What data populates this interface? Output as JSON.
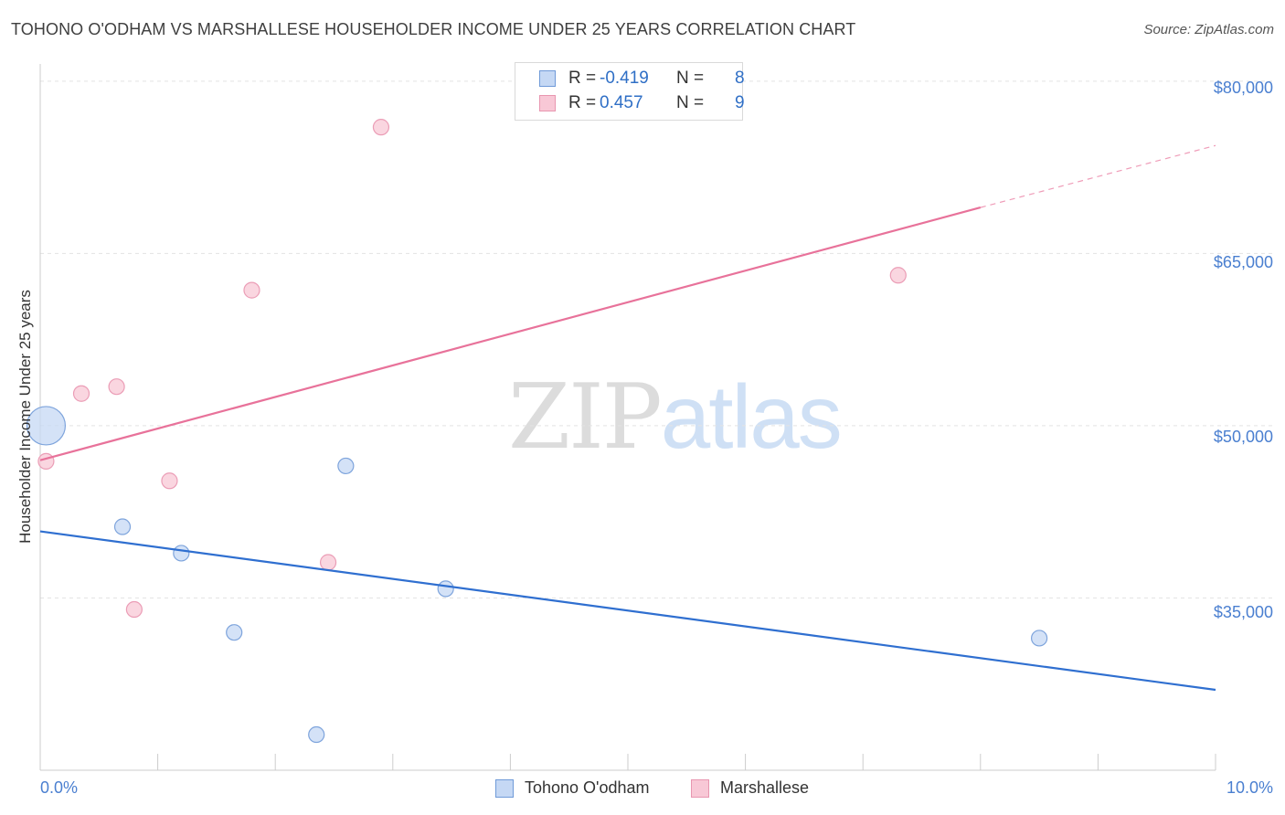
{
  "title": "TOHONO O'ODHAM VS MARSHALLESE HOUSEHOLDER INCOME UNDER 25 YEARS CORRELATION CHART",
  "source": "Source: ZipAtlas.com",
  "watermark": {
    "zip": "ZIP",
    "atlas": "atlas"
  },
  "colors": {
    "blue": "#2f6fd0",
    "pink": "#e8729a",
    "blue_fill": "#c5d8f4",
    "pink_fill": "#f8c8d6",
    "tick_text": "#4a7fd0"
  },
  "legend": {
    "rows": [
      {
        "r_label": "R =",
        "r_value": "-0.419",
        "n_label": "N =",
        "n_value": "8"
      },
      {
        "r_label": "R =",
        "r_value": "0.457",
        "n_label": "N =",
        "n_value": "9"
      }
    ]
  },
  "chart_data": {
    "type": "scatter",
    "title": "TOHONO O'ODHAM VS MARSHALLESE HOUSEHOLDER INCOME UNDER 25 YEARS CORRELATION CHART",
    "xlabel": "",
    "ylabel": "Householder Income Under 25 years",
    "xlim": [
      0,
      10
    ],
    "ylim": [
      20000,
      81500
    ],
    "x_tick_labels": {
      "left": "0.0%",
      "right": "10.0%"
    },
    "y_ticks": [
      {
        "value": 80000,
        "label": "$80,000"
      },
      {
        "value": 65000,
        "label": "$65,000"
      },
      {
        "value": 50000,
        "label": "$50,000"
      },
      {
        "value": 35000,
        "label": "$35,000"
      }
    ],
    "series": [
      {
        "name": "Tohono O'odham",
        "color": "blue",
        "points": [
          {
            "x": 0.05,
            "y": 50000,
            "size": "large"
          },
          {
            "x": 0.7,
            "y": 41200
          },
          {
            "x": 1.2,
            "y": 38900
          },
          {
            "x": 1.65,
            "y": 32000
          },
          {
            "x": 2.35,
            "y": 23100
          },
          {
            "x": 2.6,
            "y": 46500
          },
          {
            "x": 3.45,
            "y": 35800
          },
          {
            "x": 8.5,
            "y": 31500
          }
        ],
        "trend": {
          "x0": 0,
          "y0": 40800,
          "x1": 10,
          "y1": 27000
        }
      },
      {
        "name": "Marshallese",
        "color": "pink",
        "points": [
          {
            "x": 0.05,
            "y": 46900
          },
          {
            "x": 0.35,
            "y": 52800
          },
          {
            "x": 0.65,
            "y": 53400
          },
          {
            "x": 0.8,
            "y": 34000
          },
          {
            "x": 1.1,
            "y": 45200
          },
          {
            "x": 1.8,
            "y": 61800
          },
          {
            "x": 2.45,
            "y": 38100
          },
          {
            "x": 2.9,
            "y": 76000
          },
          {
            "x": 7.3,
            "y": 63100
          }
        ],
        "trend": {
          "x0": 0,
          "y0": 47000,
          "x1": 8,
          "y1": 69000
        },
        "trend_extension": {
          "x0": 8,
          "y0": 69000,
          "x1": 10,
          "y1": 74400
        }
      }
    ],
    "legend_position": "top-center"
  }
}
